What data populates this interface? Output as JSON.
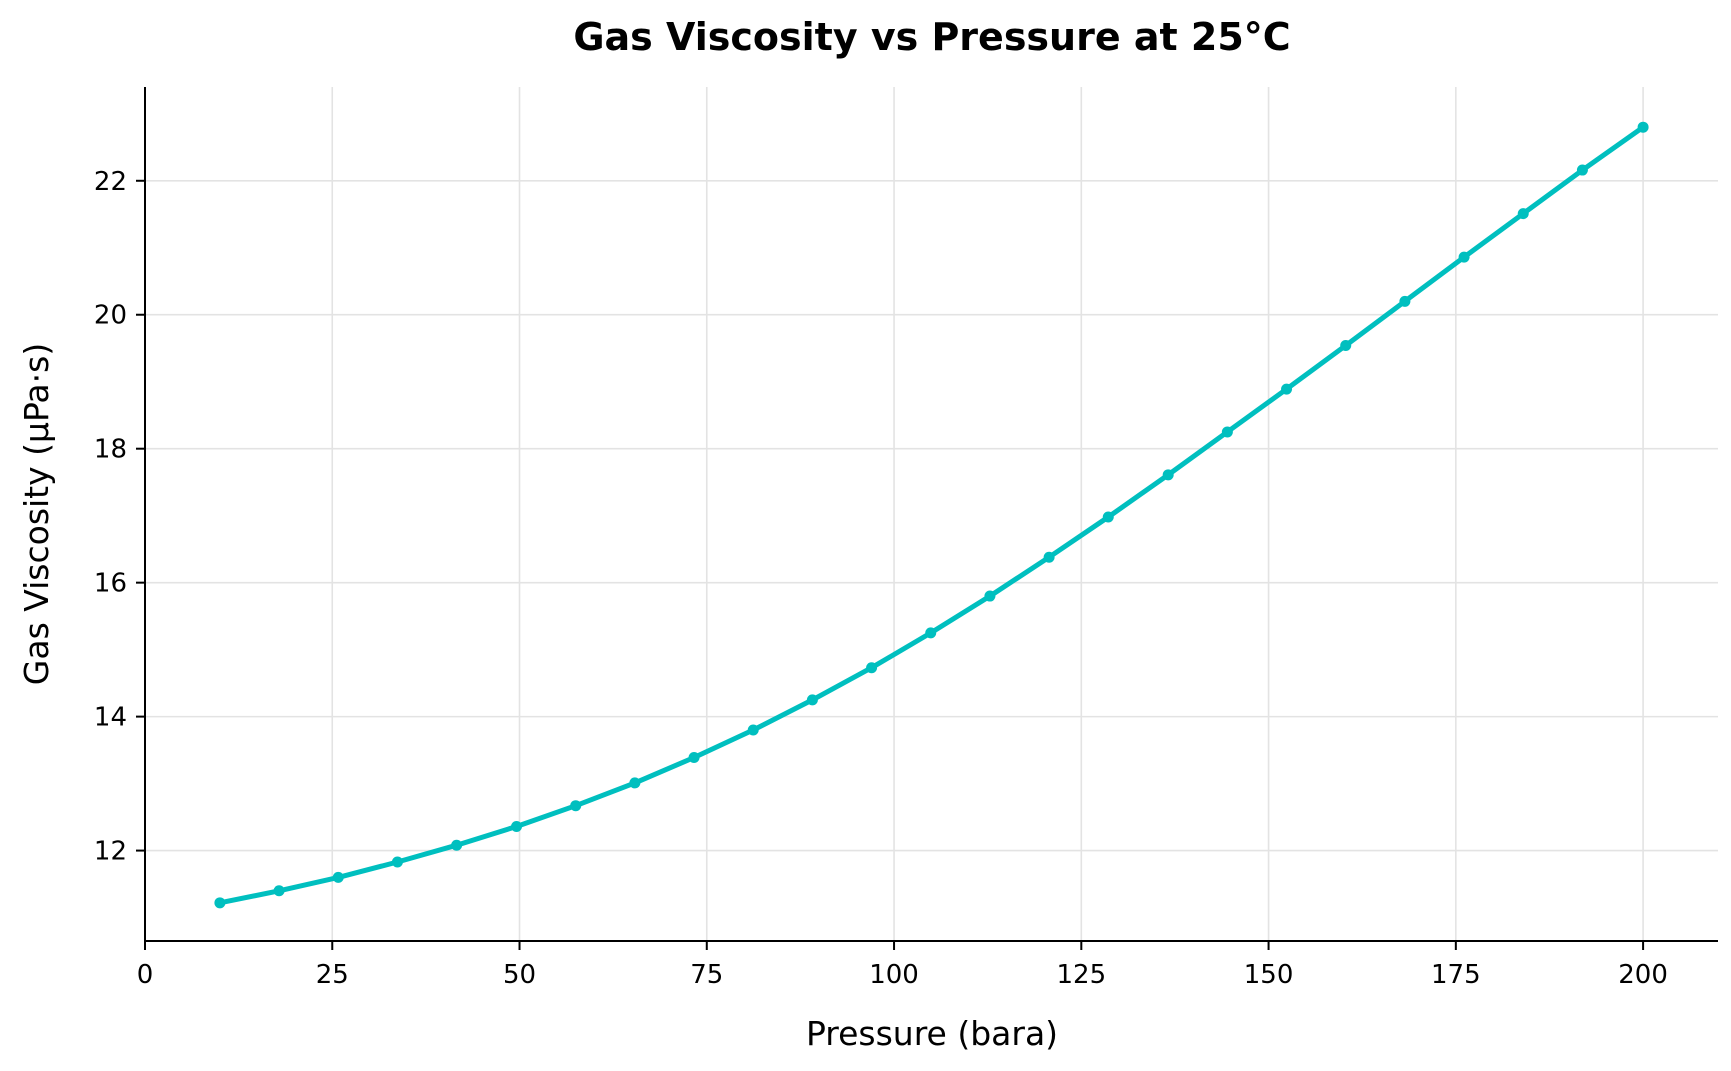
{
  "chart_data": {
    "type": "line",
    "title": "Gas Viscosity vs Pressure at 25°C",
    "xlabel": "Pressure (bara)",
    "ylabel": "Gas Viscosity (μPa·s)",
    "xlim": [
      0,
      210
    ],
    "ylim": [
      10.65,
      23.4
    ],
    "xticks": [
      0,
      25,
      50,
      75,
      100,
      125,
      150,
      175,
      200
    ],
    "yticks": [
      12,
      14,
      16,
      18,
      20,
      22
    ],
    "grid": true,
    "color": "#00bfbf",
    "series": [
      {
        "x": [
          10.0,
          17.9,
          25.8,
          33.7,
          41.6,
          49.6,
          57.5,
          65.4,
          73.3,
          81.2,
          89.1,
          97.0,
          104.9,
          112.8,
          120.7,
          128.6,
          136.6,
          144.5,
          152.4,
          160.3,
          168.2,
          176.1,
          184.0,
          191.9,
          200.0
        ],
        "y": [
          11.22,
          11.4,
          11.6,
          11.83,
          12.08,
          12.36,
          12.67,
          13.01,
          13.39,
          13.8,
          14.25,
          14.73,
          15.25,
          15.8,
          16.38,
          16.98,
          17.61,
          18.25,
          18.89,
          19.54,
          20.2,
          20.86,
          21.51,
          22.16,
          22.8
        ]
      }
    ]
  }
}
